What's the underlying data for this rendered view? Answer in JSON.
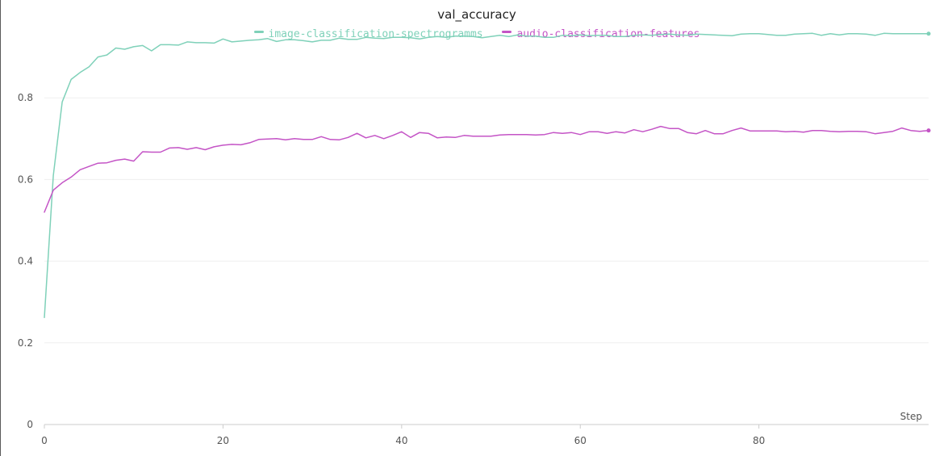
{
  "chart_data": {
    "type": "line",
    "title": "val_accuracy",
    "xlabel": "Step",
    "ylabel": "",
    "xlim": [
      0,
      99
    ],
    "ylim": [
      0,
      1.0
    ],
    "x_ticks": [
      0,
      20,
      40,
      60,
      80
    ],
    "y_ticks": [
      0,
      0.2,
      0.4,
      0.6,
      0.8
    ],
    "y_tick_labels": [
      "0",
      "0.2",
      "0.4",
      "0.6",
      "0.8"
    ],
    "x_tick_labels": [
      "0",
      "20",
      "40",
      "60",
      "80"
    ],
    "grid": true,
    "legend_position": "top-center",
    "series": [
      {
        "name": "image-classification-spectrogramms",
        "color": "#7fd1b9",
        "values": [
          0.262,
          0.61,
          0.79,
          0.845,
          0.862,
          0.876,
          0.9,
          0.905,
          0.922,
          0.919,
          0.925,
          0.928,
          0.915,
          0.93,
          0.93,
          0.929,
          0.937,
          0.935,
          0.935,
          0.934,
          0.944,
          0.937,
          0.939,
          0.941,
          0.942,
          0.945,
          0.938,
          0.942,
          0.942,
          0.94,
          0.937,
          0.941,
          0.941,
          0.946,
          0.943,
          0.943,
          0.948,
          0.946,
          0.945,
          0.948,
          0.948,
          0.947,
          0.944,
          0.948,
          0.95,
          0.948,
          0.951,
          0.951,
          0.95,
          0.947,
          0.95,
          0.953,
          0.95,
          0.954,
          0.951,
          0.951,
          0.948,
          0.948,
          0.953,
          0.952,
          0.954,
          0.952,
          0.953,
          0.953,
          0.95,
          0.95,
          0.953,
          0.954,
          0.953,
          0.955,
          0.956,
          0.954,
          0.953,
          0.956,
          0.955,
          0.954,
          0.953,
          0.952,
          0.956,
          0.957,
          0.957,
          0.955,
          0.953,
          0.953,
          0.956,
          0.957,
          0.958,
          0.953,
          0.957,
          0.954,
          0.957,
          0.957,
          0.956,
          0.953,
          0.958,
          0.957,
          0.957,
          0.957,
          0.957,
          0.957
        ]
      },
      {
        "name": "audio-classification-features",
        "color": "#c454c6",
        "values": [
          0.52,
          0.574,
          0.592,
          0.606,
          0.624,
          0.632,
          0.64,
          0.641,
          0.647,
          0.65,
          0.645,
          0.668,
          0.667,
          0.667,
          0.677,
          0.678,
          0.674,
          0.678,
          0.673,
          0.68,
          0.684,
          0.686,
          0.685,
          0.69,
          0.698,
          0.699,
          0.7,
          0.697,
          0.7,
          0.698,
          0.698,
          0.705,
          0.698,
          0.697,
          0.703,
          0.713,
          0.702,
          0.708,
          0.7,
          0.708,
          0.717,
          0.703,
          0.715,
          0.713,
          0.702,
          0.704,
          0.703,
          0.708,
          0.706,
          0.706,
          0.706,
          0.709,
          0.71,
          0.71,
          0.71,
          0.709,
          0.71,
          0.715,
          0.713,
          0.715,
          0.71,
          0.717,
          0.717,
          0.713,
          0.717,
          0.714,
          0.722,
          0.717,
          0.723,
          0.73,
          0.725,
          0.725,
          0.715,
          0.712,
          0.72,
          0.712,
          0.712,
          0.72,
          0.726,
          0.719,
          0.719,
          0.719,
          0.719,
          0.717,
          0.718,
          0.716,
          0.72,
          0.72,
          0.718,
          0.717,
          0.718,
          0.718,
          0.717,
          0.712,
          0.715,
          0.718,
          0.726,
          0.72,
          0.718,
          0.72
        ]
      }
    ]
  }
}
